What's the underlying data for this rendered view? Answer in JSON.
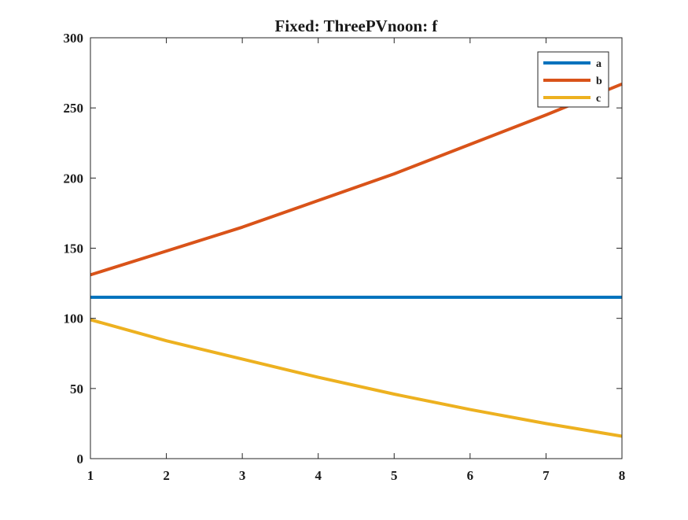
{
  "chart_data": {
    "type": "line",
    "title": "Fixed: ThreePVnoon: f",
    "xlabel": "",
    "ylabel": "",
    "xlim": [
      1,
      8
    ],
    "ylim": [
      0,
      300
    ],
    "x_ticks": [
      "1",
      "2",
      "3",
      "4",
      "5",
      "6",
      "7",
      "8"
    ],
    "y_ticks": [
      "0",
      "50",
      "100",
      "150",
      "200",
      "250",
      "300"
    ],
    "grid": false,
    "legend_position": "top-right",
    "x": [
      1,
      2,
      3,
      4,
      5,
      6,
      7,
      8
    ],
    "series": [
      {
        "name": "a",
        "color": "#0072BD",
        "values": [
          115,
          115,
          115,
          115,
          115,
          115,
          115,
          115
        ]
      },
      {
        "name": "b",
        "color": "#D95319",
        "values": [
          131,
          148,
          165,
          184,
          203,
          224,
          245,
          267
        ]
      },
      {
        "name": "c",
        "color": "#EDB120",
        "values": [
          99,
          84,
          71,
          58,
          46,
          35,
          25,
          16
        ]
      }
    ]
  }
}
